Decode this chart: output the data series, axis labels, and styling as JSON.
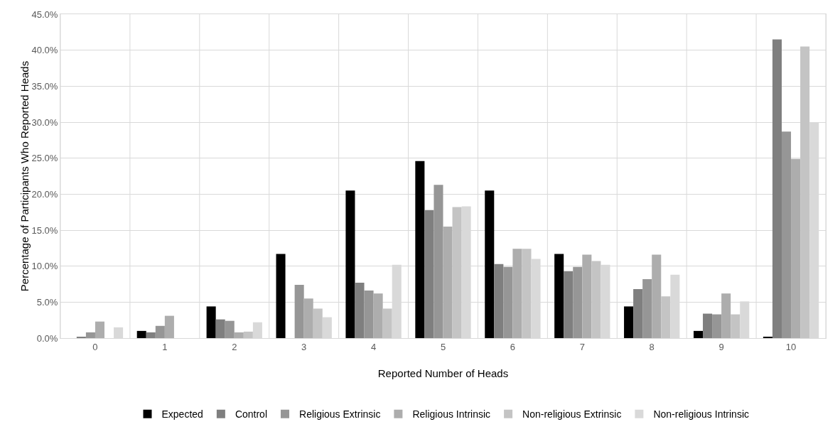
{
  "chart_data": {
    "type": "bar",
    "xlabel": "Reported Number of Heads",
    "ylabel": "Percentage of Participants Who Reported Heads",
    "categories": [
      "0",
      "1",
      "2",
      "3",
      "4",
      "5",
      "6",
      "7",
      "8",
      "9",
      "10"
    ],
    "series": [
      {
        "name": "Expected",
        "color": "#000000",
        "values": [
          0,
          1.0,
          4.4,
          11.7,
          20.5,
          24.6,
          20.5,
          11.7,
          4.4,
          1.0,
          0.1
        ]
      },
      {
        "name": "Control",
        "color": "#7f7f7f",
        "values": [
          0.2,
          0.8,
          2.6,
          0,
          7.7,
          17.8,
          10.3,
          9.3,
          6.8,
          3.4,
          41.5
        ]
      },
      {
        "name": "Religious Extrinsic",
        "color": "#969696",
        "values": [
          0.8,
          1.7,
          2.4,
          7.4,
          6.6,
          21.3,
          9.9,
          9.9,
          8.2,
          3.3,
          28.7
        ]
      },
      {
        "name": "Religious Intrinsic",
        "color": "#adadad",
        "values": [
          2.3,
          3.1,
          0.8,
          5.5,
          6.2,
          15.5,
          12.4,
          11.6,
          11.6,
          6.2,
          24.9
        ]
      },
      {
        "name": "Non-religious Extrinsic",
        "color": "#c4c4c4",
        "values": [
          0,
          0,
          0.9,
          4.1,
          4.1,
          18.2,
          12.4,
          10.7,
          5.8,
          3.3,
          40.5
        ]
      },
      {
        "name": "Non-religious Intrinsic",
        "color": "#d9d9d9",
        "values": [
          1.5,
          0,
          2.2,
          2.9,
          10.2,
          18.3,
          11.0,
          10.2,
          8.8,
          5.1,
          30.0
        ]
      }
    ],
    "ylim": [
      0,
      45
    ],
    "yticks": [
      {
        "value": 0,
        "label": "0.0%"
      },
      {
        "value": 5,
        "label": "5.0%"
      },
      {
        "value": 10,
        "label": "10.0%"
      },
      {
        "value": 15,
        "label": "15.0%"
      },
      {
        "value": 20,
        "label": "20.0%"
      },
      {
        "value": 25,
        "label": "25.0%"
      },
      {
        "value": 30,
        "label": "30.0%"
      },
      {
        "value": 35,
        "label": "35.0%"
      },
      {
        "value": 40,
        "label": "40.0%"
      },
      {
        "value": 45,
        "label": "45.0%"
      }
    ],
    "grid": true,
    "legend": "bottom"
  }
}
